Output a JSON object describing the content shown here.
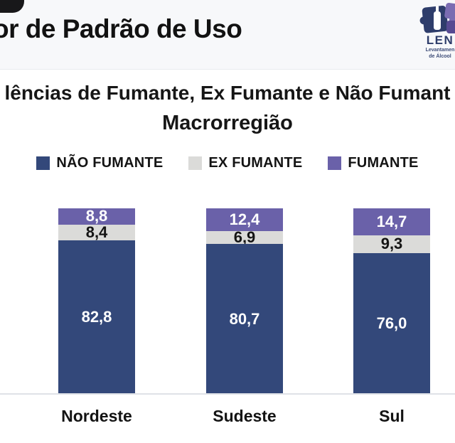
{
  "header": {
    "title": "or de Padrão de Uso",
    "logo": {
      "name": "LEN",
      "subtitle_line1": "Levantamen",
      "subtitle_line2": "de Álcool"
    }
  },
  "chart_title": {
    "line1": "lências de Fumante, Ex Fumante e Não Fumant",
    "line2": "Macrorregião"
  },
  "chart_data": {
    "type": "bar",
    "stacked": true,
    "unit": "percent",
    "categories": [
      "Nordeste",
      "Sudeste",
      "Sul"
    ],
    "series": [
      {
        "name": "NÃO FUMANTE",
        "color": "#33487A",
        "label_color": "#ffffff",
        "values": [
          82.8,
          80.7,
          76.0
        ],
        "labels": [
          "82,8",
          "80,7",
          "76,0"
        ]
      },
      {
        "name": "EX FUMANTE",
        "color": "#DBDBD9",
        "label_color": "#141414",
        "values": [
          8.4,
          6.9,
          9.3
        ],
        "labels": [
          "8,4",
          "6,9",
          "9,3"
        ]
      },
      {
        "name": "FUMANTE",
        "color": "#6A61A9",
        "label_color": "#ffffff",
        "values": [
          8.8,
          12.4,
          14.7
        ],
        "labels": [
          "8,8",
          "12,4",
          "14,7"
        ]
      }
    ],
    "stack_order_top_to_bottom": [
      "FUMANTE",
      "EX FUMANTE",
      "NÃO FUMANTE"
    ],
    "legend_position": "top",
    "ylim": [
      0,
      100
    ],
    "grid": false
  },
  "colors": {
    "header_bg": "#f7f8fa",
    "corner_accent": "#18181a",
    "logo_navy": "#2e3d6b",
    "logo_purple": "#7b6cb2",
    "baseline": "#dfe2e7"
  }
}
